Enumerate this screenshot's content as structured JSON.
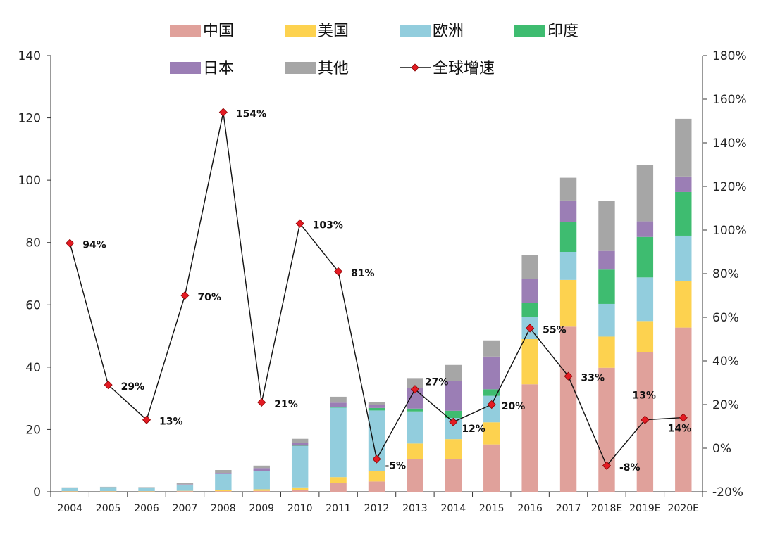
{
  "chart_data": {
    "type": "bar",
    "stacked": true,
    "categories": [
      "2004",
      "2005",
      "2006",
      "2007",
      "2008",
      "2009",
      "2010",
      "2011",
      "2012",
      "2013",
      "2014",
      "2015",
      "2016",
      "2017",
      "2018E",
      "2019E",
      "2020E"
    ],
    "series": [
      {
        "name": "中国",
        "color": "#E0A19B",
        "values": [
          0.1,
          0.1,
          0.1,
          0.2,
          0.2,
          0.3,
          0.6,
          2.8,
          3.3,
          10.5,
          10.5,
          15.2,
          34.5,
          53.0,
          39.8,
          44.8,
          52.7
        ]
      },
      {
        "name": "美国",
        "color": "#FDD24F",
        "values": [
          0.1,
          0.1,
          0.1,
          0.1,
          0.3,
          0.5,
          0.8,
          1.9,
          3.3,
          5.0,
          6.4,
          7.1,
          14.5,
          15.0,
          10.0,
          10.0,
          15.0
        ]
      },
      {
        "name": "欧洲",
        "color": "#92CDDD",
        "values": [
          1.1,
          1.3,
          1.2,
          2.0,
          5.2,
          5.9,
          13.3,
          22.3,
          19.5,
          10.3,
          6.8,
          8.5,
          7.2,
          9.0,
          10.5,
          14.0,
          14.5
        ]
      },
      {
        "name": "印度",
        "color": "#3EBC70",
        "values": [
          0,
          0,
          0,
          0,
          0,
          0,
          0.1,
          0.2,
          0.8,
          0.9,
          2.3,
          2.1,
          4.4,
          9.5,
          11.0,
          13.0,
          14.0
        ]
      },
      {
        "name": "日本",
        "color": "#9B7EB5",
        "values": [
          0,
          0,
          0,
          0.1,
          0.3,
          0.9,
          0.9,
          1.4,
          1.1,
          6.7,
          9.6,
          10.5,
          7.8,
          7.0,
          6.0,
          5.0,
          5.0
        ]
      },
      {
        "name": "其他",
        "color": "#A6A6A6",
        "values": [
          0.1,
          0.1,
          0.1,
          0.3,
          1.0,
          0.8,
          1.3,
          1.9,
          0.8,
          3.1,
          5.1,
          5.2,
          7.6,
          7.3,
          16.0,
          18.0,
          18.5
        ]
      }
    ],
    "line": {
      "name": "全球增速",
      "axis": "right",
      "values": [
        94,
        29,
        13,
        70,
        154,
        21,
        103,
        81,
        -5,
        27,
        12,
        20,
        55,
        33,
        -8,
        13,
        14
      ],
      "labels": [
        "94%",
        "29%",
        "13%",
        "70%",
        "154%",
        "21%",
        "103%",
        "81%",
        "-5%",
        "27%",
        "12%",
        "20%",
        "55%",
        "33%",
        "-8%",
        "13%",
        "14%"
      ]
    },
    "ylim": [
      0,
      140
    ],
    "y_ticks": [
      "0",
      "20",
      "40",
      "60",
      "80",
      "100",
      "120",
      "140"
    ],
    "y2lim": [
      -20,
      180
    ],
    "y2_ticks": [
      "-20%",
      "0%",
      "20%",
      "40%",
      "60%",
      "80%",
      "100%",
      "120%",
      "140%",
      "160%",
      "180%"
    ],
    "legend": "top",
    "grid": false
  }
}
